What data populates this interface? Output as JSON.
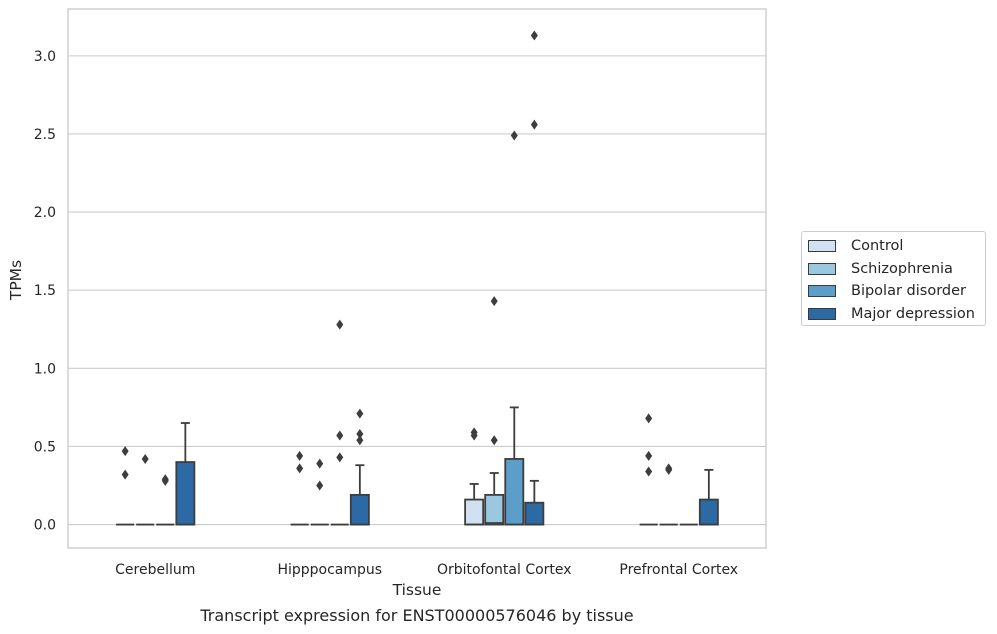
{
  "caption": "Transcript expression for ENST00000576046 by tissue",
  "chart_data": {
    "type": "box",
    "title": "",
    "xlabel": "Tissue",
    "ylabel": "TPMs",
    "ylim": [
      -0.15,
      3.3
    ],
    "yticks": [
      0.0,
      0.5,
      1.0,
      1.5,
      2.0,
      2.5,
      3.0
    ],
    "ytick_labels": [
      "0.0",
      "0.5",
      "1.0",
      "1.5",
      "2.0",
      "2.5",
      "3.0"
    ],
    "grid": "horizontal",
    "legend_position": "outside-right",
    "categories": [
      "Cerebellum",
      "Hipppocampus",
      "Orbitofontal Cortex",
      "Prefrontal Cortex"
    ],
    "series": [
      {
        "name": "Control",
        "color": "#d0e2f2",
        "boxes": [
          {
            "q1": 0,
            "median": 0,
            "q3": 0,
            "whisker_low": 0,
            "whisker_high": 0,
            "outliers": [
              0.47,
              0.32
            ]
          },
          {
            "q1": 0,
            "median": 0,
            "q3": 0,
            "whisker_low": 0,
            "whisker_high": 0,
            "outliers": [
              0.44,
              0.36
            ]
          },
          {
            "q1": 0,
            "median": 0,
            "q3": 0.16,
            "whisker_low": 0,
            "whisker_high": 0.26,
            "outliers": [
              0.59,
              0.57
            ]
          },
          {
            "q1": 0,
            "median": 0,
            "q3": 0,
            "whisker_low": 0,
            "whisker_high": 0,
            "outliers": [
              0.68,
              0.44,
              0.34
            ]
          }
        ]
      },
      {
        "name": "Schizophrenia",
        "color": "#9ac8e0",
        "boxes": [
          {
            "q1": 0,
            "median": 0,
            "q3": 0,
            "whisker_low": 0,
            "whisker_high": 0,
            "outliers": [
              0.42
            ]
          },
          {
            "q1": 0,
            "median": 0,
            "q3": 0,
            "whisker_low": 0,
            "whisker_high": 0,
            "outliers": [
              0.39,
              0.25
            ]
          },
          {
            "q1": 0,
            "median": 0.01,
            "q3": 0.19,
            "whisker_low": 0,
            "whisker_high": 0.33,
            "outliers": [
              1.43,
              0.54
            ]
          },
          {
            "q1": 0,
            "median": 0,
            "q3": 0,
            "whisker_low": 0,
            "whisker_high": 0,
            "outliers": [
              0.36,
              0.35
            ]
          }
        ]
      },
      {
        "name": "Bipolar disorder",
        "color": "#5a9ec9",
        "boxes": [
          {
            "q1": 0,
            "median": 0,
            "q3": 0,
            "whisker_low": 0,
            "whisker_high": 0,
            "outliers": [
              0.29,
              0.28
            ]
          },
          {
            "q1": 0,
            "median": 0,
            "q3": 0,
            "whisker_low": 0,
            "whisker_high": 0,
            "outliers": [
              1.28,
              0.57,
              0.43
            ]
          },
          {
            "q1": 0,
            "median": 0,
            "q3": 0.42,
            "whisker_low": 0,
            "whisker_high": 0.75,
            "outliers": [
              2.49
            ]
          },
          {
            "q1": 0,
            "median": 0,
            "q3": 0,
            "whisker_low": 0,
            "whisker_high": 0,
            "outliers": []
          }
        ]
      },
      {
        "name": "Major depression",
        "color": "#2c6aa6",
        "boxes": [
          {
            "q1": 0,
            "median": 0,
            "q3": 0.4,
            "whisker_low": 0,
            "whisker_high": 0.65,
            "outliers": []
          },
          {
            "q1": 0,
            "median": 0,
            "q3": 0.19,
            "whisker_low": 0,
            "whisker_high": 0.38,
            "outliers": [
              0.71,
              0.58,
              0.54
            ]
          },
          {
            "q1": 0,
            "median": 0,
            "q3": 0.14,
            "whisker_low": 0,
            "whisker_high": 0.28,
            "outliers": [
              3.13,
              2.56
            ]
          },
          {
            "q1": 0,
            "median": 0,
            "q3": 0.16,
            "whisker_low": 0,
            "whisker_high": 0.35,
            "outliers": []
          }
        ]
      }
    ]
  }
}
